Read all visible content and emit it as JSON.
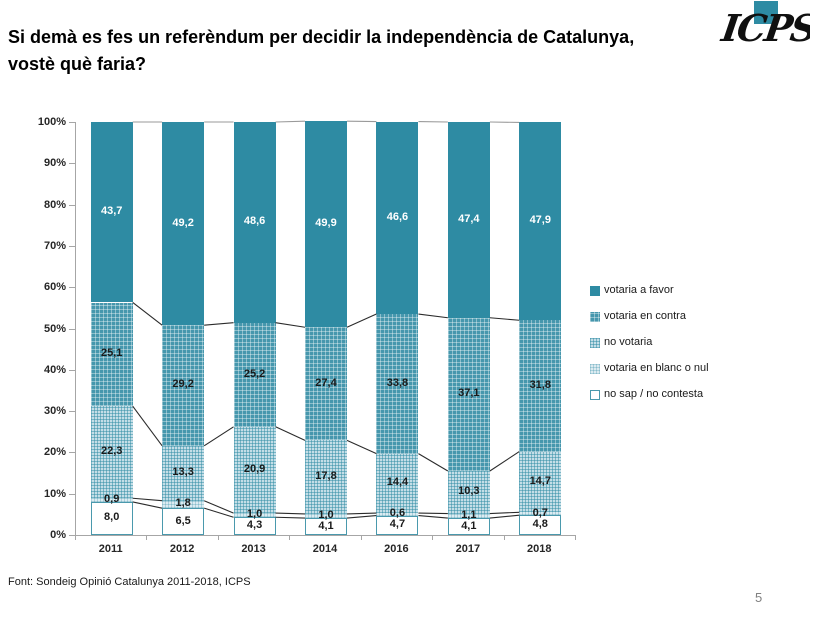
{
  "slide": {
    "title_line1": "Si demà es fes un referèndum per decidir la independència de Catalunya,",
    "title_line2": "vostè què faria?",
    "logo_text": "ICPS",
    "footer_source": "Font: Sondeig Opinió Catalunya 2011-2018, ICPS",
    "page_number": "5"
  },
  "colors": {
    "accent_teal": "#2E8BA3",
    "contra_pattern_base": "#4697AD",
    "no_votaria_pattern_base": "#C4DEE7",
    "blanc_pattern_base": "#DCEBF1",
    "no_sap_border": "#4A99AD",
    "axis_gray": "#A6A6A6",
    "series_line_dark": "#2B2B2B",
    "series_line_top_gray": "#9A9A9A"
  },
  "chart_data": {
    "type": "bar",
    "subtype": "100%-stacked-column",
    "unit": "percent",
    "gridlines": false,
    "categories": [
      "2011",
      "2012",
      "2013",
      "2014",
      "2016",
      "2017",
      "2018"
    ],
    "series": [
      {
        "name": "no sap / no contesta",
        "style": "nosap",
        "values": [
          8.0,
          6.5,
          4.3,
          4.1,
          4.7,
          4.1,
          4.8
        ],
        "labels": [
          "8,0",
          "6,5",
          "4,3",
          "4,1",
          "4,7",
          "4,1",
          "4,8"
        ]
      },
      {
        "name": "votaria en blanc o nul",
        "style": "blanc",
        "values": [
          0.9,
          1.8,
          1.0,
          1.0,
          0.6,
          1.1,
          0.7
        ],
        "labels": [
          "0,9",
          "1,8",
          "1,0",
          "1,0",
          "0,6",
          "1,1",
          "0,7"
        ]
      },
      {
        "name": "no votaria",
        "style": "novotaria",
        "values": [
          22.3,
          13.3,
          20.9,
          17.8,
          14.4,
          10.3,
          14.7
        ],
        "labels": [
          "22,3",
          "13,3",
          "20,9",
          "17,8",
          "14,4",
          "10,3",
          "14,7"
        ]
      },
      {
        "name": "votaria en contra",
        "style": "contra",
        "values": [
          25.1,
          29.2,
          25.2,
          27.4,
          33.8,
          37.1,
          31.8
        ],
        "labels": [
          "25,1",
          "29,2",
          "25,2",
          "27,4",
          "33,8",
          "37,1",
          "31,8"
        ]
      },
      {
        "name": "votaria a favor",
        "style": "favor",
        "values": [
          43.7,
          49.2,
          48.6,
          49.9,
          46.6,
          47.4,
          47.9
        ],
        "labels": [
          "43,7",
          "49,2",
          "48,6",
          "49,9",
          "46,6",
          "47,4",
          "47,9"
        ]
      }
    ],
    "stack_order": "bottom-to-top",
    "y_axis": {
      "min": 0,
      "max": 100,
      "step": 10
    },
    "y_tick_labels": [
      "0%",
      "10%",
      "20%",
      "30%",
      "40%",
      "50%",
      "60%",
      "70%",
      "80%",
      "90%",
      "100%"
    ],
    "series_lines": true,
    "legend": {
      "position": "right",
      "items_top_to_bottom": [
        "votaria a favor",
        "votaria en contra",
        "no votaria",
        "votaria en blanc o nul",
        "no sap / no contesta"
      ]
    }
  }
}
